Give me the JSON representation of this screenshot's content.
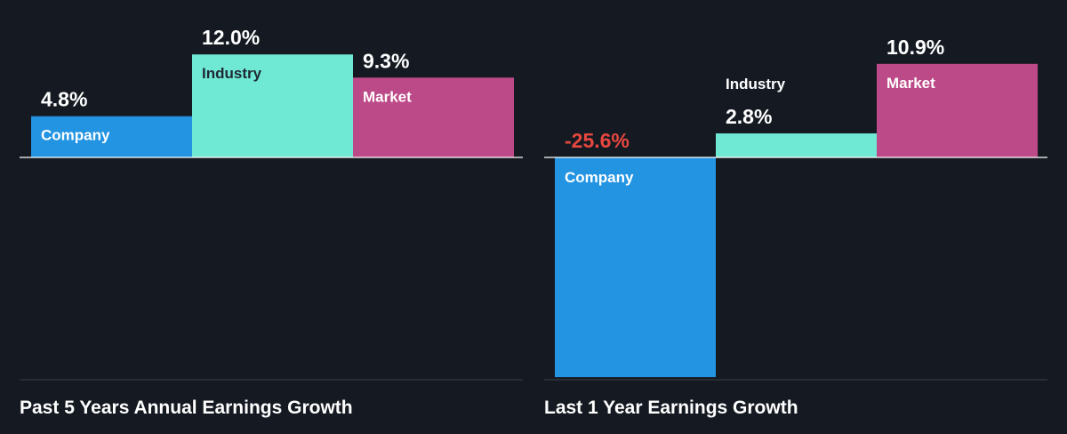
{
  "theme": {
    "background": "#151a22",
    "axis_color": "#ffffff",
    "divider_color": "#3a3f47",
    "value_color": "#ffffff",
    "negative_value_color": "#e8473f",
    "label_light": "#ffffff",
    "label_dark": "#1f2933"
  },
  "chart_data": [
    {
      "type": "bar",
      "title": "Past 5 Years Annual Earnings Growth",
      "unit": "%",
      "categories": [
        "Company",
        "Industry",
        "Market"
      ],
      "values": [
        4.8,
        12.0,
        9.3
      ],
      "value_labels": [
        "4.8%",
        "12.0%",
        "9.3%"
      ],
      "colors": [
        "#2394e2",
        "#6fe8d4",
        "#bd4a88"
      ],
      "label_styles": [
        "light",
        "dark",
        "light"
      ],
      "ylim": [
        -25.6,
        12.0
      ]
    },
    {
      "type": "bar",
      "title": "Last 1 Year Earnings Growth",
      "unit": "%",
      "categories": [
        "Company",
        "Industry",
        "Market"
      ],
      "values": [
        -25.6,
        2.8,
        10.9
      ],
      "value_labels": [
        "-25.6%",
        "2.8%",
        "10.9%"
      ],
      "colors": [
        "#2394e2",
        "#6fe8d4",
        "#bd4a88"
      ],
      "label_styles": [
        "light",
        "dark",
        "light"
      ],
      "ylim": [
        -25.6,
        12.0
      ]
    }
  ]
}
